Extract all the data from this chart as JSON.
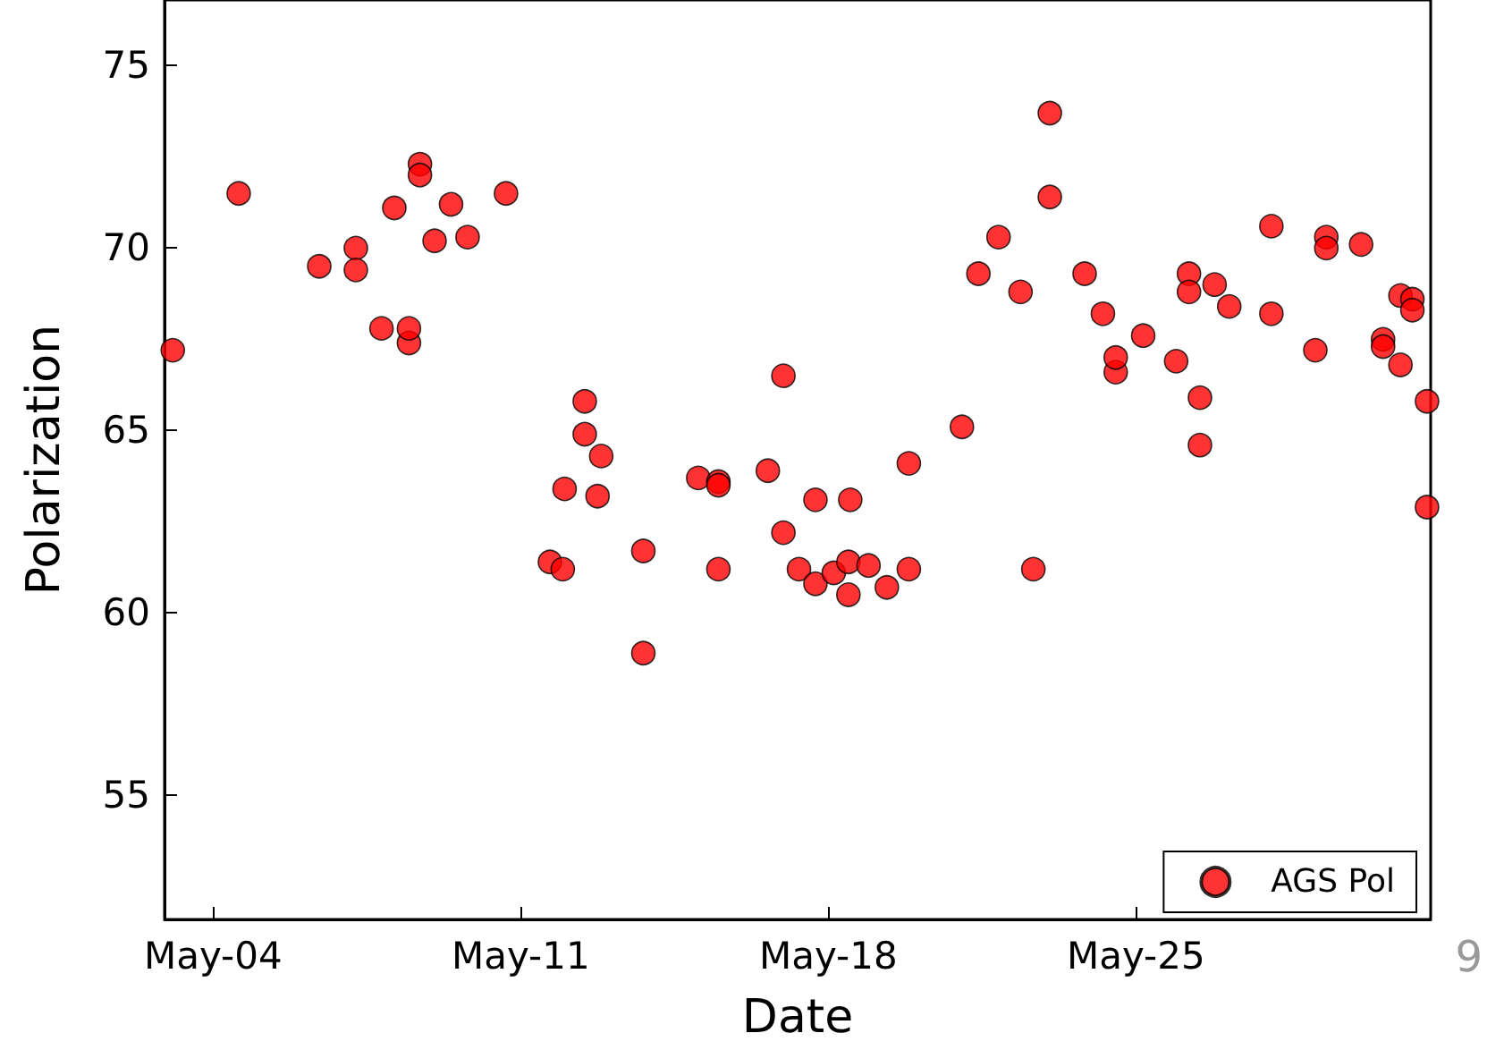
{
  "chart_data": {
    "type": "scatter",
    "xlabel": "Date",
    "ylabel": "Polarization",
    "xlim": [
      "--05-02T21:30",
      "--05-31T17:00"
    ],
    "xticks": [
      {
        "value": "--05-04",
        "label": "May-04"
      },
      {
        "value": "--05-11",
        "label": "May-11"
      },
      {
        "value": "--05-18",
        "label": "May-18"
      },
      {
        "value": "--05-25",
        "label": "May-25"
      }
    ],
    "ylim": [
      51.6,
      76.8
    ],
    "yticks": [
      55,
      60,
      65,
      70,
      75
    ],
    "grid": false,
    "legend": "bottom right",
    "marker": "circle",
    "annotations": [
      "9"
    ],
    "series": [
      {
        "name": "AGS Pol",
        "color": "#ff0000",
        "x": [
          "--05-03T02:00",
          "--05-04T14:00",
          "--05-06T10:00",
          "--05-07T06:00",
          "--05-07T06:00",
          "--05-07T20:00",
          "--05-08T03:00",
          "--05-08T11:00",
          "--05-08T11:00",
          "--05-08T17:00",
          "--05-08T17:00",
          "--05-09T01:00",
          "--05-09T10:00",
          "--05-09T19:00",
          "--05-10T16:00",
          "--05-11T16:00",
          "--05-11T23:00",
          "--05-12T00:00",
          "--05-12T11:00",
          "--05-12T11:00",
          "--05-12T20:00",
          "--05-12T18:00",
          "--05-13T19:00",
          "--05-13T19:00",
          "--05-15T01:00",
          "--05-15T12:00",
          "--05-15T12:00",
          "--05-15T12:00",
          "--05-16T15:00",
          "--05-16T23:30",
          "--05-16T23:30",
          "--05-17T08:00",
          "--05-17T17:00",
          "--05-17T17:00",
          "--05-18T03:00",
          "--05-18T11:00",
          "--05-18T11:00",
          "--05-18T12:00",
          "--05-18T22:00",
          "--05-19T08:00",
          "--05-19T20:00",
          "--05-19T20:00",
          "--05-21T01:00",
          "--05-21T10:00",
          "--05-21T21:00",
          "--05-22T09:00",
          "--05-22T16:00",
          "--05-23T01:00",
          "--05-23T01:00",
          "--05-23T20:00",
          "--05-24T06:00",
          "--05-24T13:00",
          "--05-24T13:00",
          "--05-25T04:00",
          "--05-25T22:00",
          "--05-26T05:00",
          "--05-26T05:00",
          "--05-26T11:00",
          "--05-26T11:00",
          "--05-26T19:00",
          "--05-27T03:00",
          "--05-28T02:00",
          "--05-28T02:00",
          "--05-29T02:00",
          "--05-29T08:00",
          "--05-29T08:00",
          "--05-30T03:00",
          "--05-30T15:00",
          "--05-30T15:00",
          "--05-31T00:30",
          "--05-31T07:00",
          "--05-31T07:00",
          "--05-31T00:30",
          "--05-31T15:00",
          "--05-31T15:00"
        ],
        "values": [
          67.2,
          71.5,
          69.5,
          70.0,
          69.4,
          67.8,
          71.1,
          67.4,
          67.8,
          72.3,
          72.0,
          70.2,
          71.2,
          70.3,
          71.5,
          61.4,
          61.2,
          63.4,
          65.8,
          64.9,
          64.3,
          63.2,
          61.7,
          58.9,
          63.7,
          63.6,
          63.5,
          61.2,
          63.9,
          66.5,
          62.2,
          61.2,
          60.8,
          63.1,
          61.1,
          61.4,
          60.5,
          63.1,
          61.3,
          60.7,
          64.1,
          61.2,
          65.1,
          69.3,
          70.3,
          68.8,
          61.2,
          73.7,
          71.4,
          69.3,
          68.2,
          66.6,
          67.0,
          67.6,
          66.9,
          69.3,
          68.8,
          65.9,
          64.6,
          69.0,
          68.4,
          70.6,
          68.2,
          67.2,
          70.3,
          70.0,
          70.1,
          67.5,
          67.3,
          68.7,
          68.6,
          68.3,
          66.8,
          65.8,
          62.9
        ]
      }
    ]
  }
}
